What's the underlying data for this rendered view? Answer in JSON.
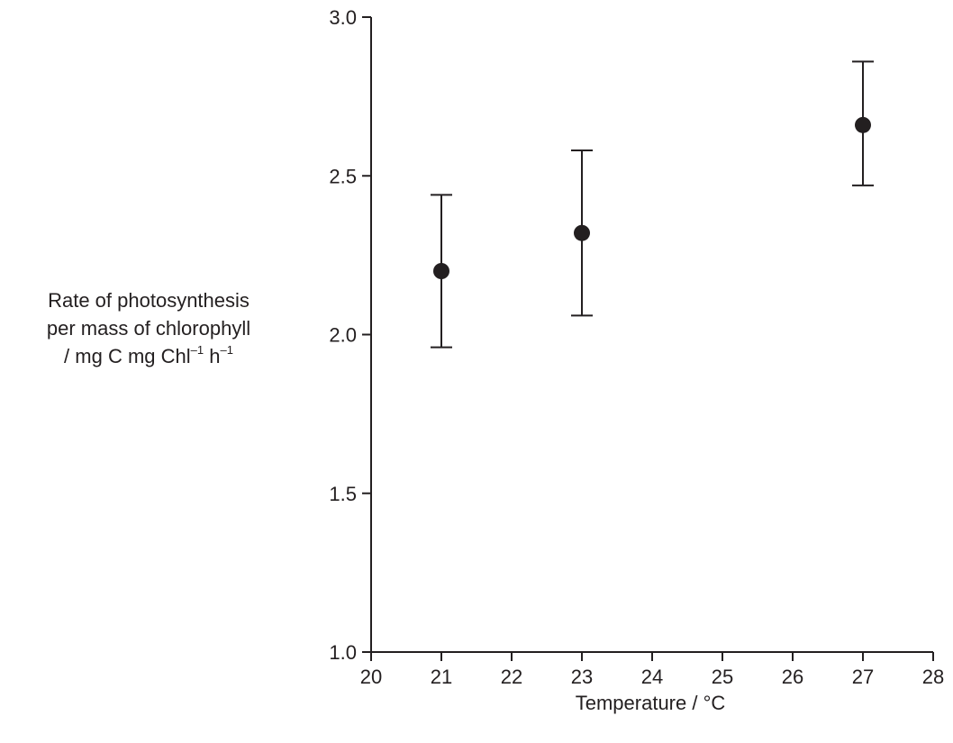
{
  "chart_data": {
    "type": "scatter",
    "title": "",
    "xlabel": "Temperature / °C",
    "ylabel": {
      "line1": "Rate of photosynthesis",
      "line2": "per mass of chlorophyll",
      "line3_prefix": "/ mg C mg Chl",
      "line3_sup1": "–1",
      "line3_mid": " h",
      "line3_sup2": "–1"
    },
    "xlim": [
      20,
      28
    ],
    "ylim": [
      1.0,
      3.0
    ],
    "x_ticks": [
      20,
      21,
      22,
      23,
      24,
      25,
      26,
      27,
      28
    ],
    "y_ticks": [
      1.0,
      1.5,
      2.0,
      2.5,
      3.0
    ],
    "y_tick_labels": [
      "1.0",
      "1.5",
      "2.0",
      "2.5",
      "3.0"
    ],
    "x_tick_labels": [
      "20",
      "21",
      "22",
      "23",
      "24",
      "25",
      "26",
      "27",
      "28"
    ],
    "grid": false,
    "series": [
      {
        "points": [
          {
            "x": 21,
            "y": 2.2,
            "err_low": 1.96,
            "err_high": 2.44
          },
          {
            "x": 23,
            "y": 2.32,
            "err_low": 2.06,
            "err_high": 2.58
          },
          {
            "x": 27,
            "y": 2.66,
            "err_low": 2.47,
            "err_high": 2.86
          }
        ],
        "color": "#231f20",
        "marker": "circle",
        "error_bars": true
      }
    ]
  }
}
